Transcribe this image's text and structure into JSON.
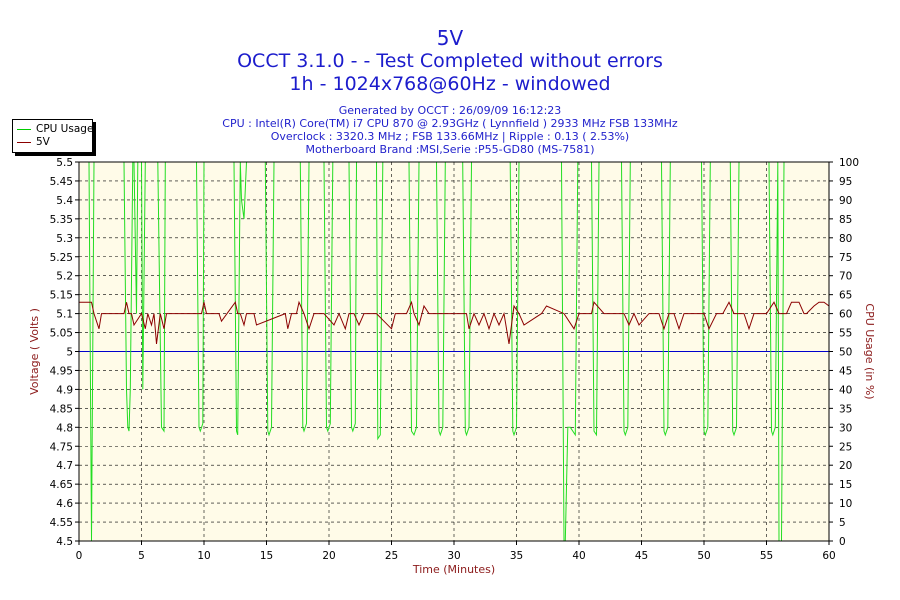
{
  "header": {
    "title": "5V",
    "subtitle1": "OCCT 3.1.0 -  - Test Completed without errors",
    "subtitle2": "1h - 1024x768@60Hz - windowed"
  },
  "info": {
    "generated": "Generated by OCCT : 26/09/09 16:12:23",
    "cpu": "CPU : Intel(R) Core(TM) i7 CPU 870 @ 2.93GHz ( Lynnfield ) 2933 MHz FSB 133MHz",
    "overclock": "Overclock : 3320.3 MHz ; FSB 133.66MHz | Ripple : 0.13 ( 2.53%)",
    "motherboard": "Motherboard Brand :MSI,Serie :P55-GD80 (MS-7581)"
  },
  "legend": {
    "items": [
      {
        "label": "CPU Usage",
        "color": "#00cc00"
      },
      {
        "label": "5V",
        "color": "#8b0000"
      }
    ]
  },
  "colors": {
    "plot_bg": "#fffbe8",
    "grid": "#000000",
    "cpu": "#22dd22",
    "voltage": "#8b0000",
    "reference": "#0000cc"
  },
  "chart_data": {
    "type": "line",
    "xlabel": "Time (Minutes)",
    "ylabel": "Voltage ( Volts )",
    "y2label": "CPU Usage (in %)",
    "xlim": [
      0,
      60
    ],
    "ylim": [
      4.5,
      5.5
    ],
    "y2lim": [
      0,
      100
    ],
    "x_ticks": [
      "0",
      "5",
      "10",
      "15",
      "20",
      "25",
      "30",
      "35",
      "40",
      "45",
      "50",
      "55",
      "60"
    ],
    "y_ticks": [
      "4.5",
      "4.55",
      "4.6",
      "4.65",
      "4.7",
      "4.75",
      "4.8",
      "4.85",
      "4.9",
      "4.95",
      "5",
      "5.05",
      "5.1",
      "5.15",
      "5.2",
      "5.25",
      "5.3",
      "5.35",
      "5.4",
      "5.45",
      "5.5"
    ],
    "y2_ticks": [
      "0",
      "5",
      "10",
      "15",
      "20",
      "25",
      "30",
      "35",
      "40",
      "45",
      "50",
      "55",
      "60",
      "65",
      "70",
      "75",
      "80",
      "85",
      "90",
      "95",
      "100"
    ],
    "grid": true,
    "legend_position": "top-left",
    "reference_line": {
      "y": 5.0
    },
    "series": [
      {
        "name": "CPU Usage",
        "axis": "right",
        "x": [
          0,
          0.8,
          1.0,
          1.2,
          1.4,
          3.6,
          3.8,
          3.9,
          4.0,
          4.1,
          4.3,
          4.4,
          4.6,
          4.7,
          5.0,
          5.1,
          5.3,
          6.3,
          6.6,
          6.8,
          6.9,
          7.1,
          9.4,
          9.6,
          9.7,
          9.9,
          10.0,
          12.4,
          12.6,
          12.7,
          12.9,
          13.0,
          13.2,
          13.4,
          14.9,
          15.1,
          15.2,
          15.4,
          15.6,
          17.7,
          17.9,
          18.0,
          18.2,
          18.4,
          19.6,
          19.8,
          19.9,
          20.1,
          20.3,
          21.6,
          21.8,
          21.9,
          22.1,
          22.2,
          23.8,
          23.9,
          24.1,
          24.3,
          26.4,
          26.6,
          26.8,
          27.0,
          27.2,
          28.6,
          28.8,
          28.9,
          29.1,
          29.3,
          30.7,
          30.9,
          31.0,
          31.2,
          31.4,
          34.5,
          34.7,
          34.8,
          35.0,
          35.2,
          38.6,
          38.8,
          38.9,
          39.1,
          39.3,
          39.5,
          39.7,
          39.9,
          41.0,
          41.2,
          41.4,
          41.6,
          43.4,
          43.6,
          43.7,
          43.9,
          44.1,
          46.6,
          46.8,
          46.9,
          47.1,
          47.3,
          49.8,
          50.0,
          50.1,
          50.3,
          50.5,
          52.1,
          52.3,
          52.4,
          52.6,
          52.8,
          55.2,
          55.4,
          55.5,
          55.7,
          55.9,
          56.0,
          56.2,
          56.4,
          60
        ],
        "y": [
          100,
          100,
          0,
          100,
          100,
          100,
          40,
          30,
          29,
          40,
          100,
          100,
          60,
          100,
          100,
          40,
          100,
          100,
          30,
          29,
          100,
          100,
          100,
          30,
          29,
          31,
          100,
          100,
          29,
          28,
          100,
          90,
          85,
          100,
          100,
          29,
          28,
          30,
          100,
          100,
          30,
          29,
          31,
          100,
          100,
          30,
          29,
          31,
          100,
          100,
          30,
          29,
          31,
          100,
          100,
          27,
          28,
          100,
          100,
          29,
          28,
          30,
          100,
          100,
          29,
          28,
          30,
          100,
          100,
          29,
          28,
          30,
          100,
          100,
          29,
          28,
          30,
          100,
          100,
          0,
          0,
          30,
          30,
          29,
          28,
          100,
          100,
          29,
          28,
          100,
          100,
          29,
          28,
          30,
          100,
          100,
          29,
          28,
          30,
          100,
          100,
          29,
          28,
          30,
          100,
          100,
          29,
          28,
          30,
          100,
          100,
          29,
          28,
          30,
          100,
          0,
          0,
          100,
          100
        ]
      },
      {
        "name": "5V",
        "axis": "left",
        "x": [
          0,
          1.0,
          1.2,
          1.6,
          1.8,
          3.6,
          3.8,
          4.0,
          4.2,
          4.4,
          5.0,
          5.3,
          5.5,
          5.8,
          6.0,
          6.2,
          6.5,
          6.8,
          7.0,
          9.8,
          10.0,
          10.2,
          11.2,
          11.4,
          12.5,
          12.7,
          12.9,
          13.2,
          13.4,
          14.0,
          14.2,
          16.5,
          16.7,
          17.0,
          17.4,
          17.6,
          18.0,
          18.4,
          18.8,
          19.6,
          20.4,
          20.8,
          21.3,
          21.6,
          22.0,
          22.4,
          22.8,
          23.8,
          25.0,
          25.3,
          26.2,
          26.6,
          26.8,
          27.2,
          27.6,
          28.0,
          28.4,
          30.0,
          31.0,
          31.2,
          31.6,
          32.0,
          32.4,
          32.8,
          33.2,
          33.6,
          34.0,
          34.4,
          34.8,
          35.2,
          35.6,
          37.0,
          37.4,
          38.8,
          39.6,
          40.0,
          41.0,
          41.2,
          42.0,
          42.8,
          43.6,
          44.0,
          44.4,
          44.8,
          45.6,
          46.4,
          46.8,
          47.2,
          47.6,
          48.0,
          48.4,
          49.0,
          50.0,
          50.4,
          51.0,
          51.5,
          52.0,
          52.4,
          52.8,
          53.2,
          53.6,
          54.0,
          54.4,
          55.0,
          55.6,
          56.0,
          56.3,
          56.6,
          57.0,
          57.6,
          58.0,
          58.2,
          58.8,
          59.2,
          59.6,
          60
        ],
        "y": [
          5.13,
          5.13,
          5.1,
          5.06,
          5.1,
          5.1,
          5.13,
          5.1,
          5.1,
          5.07,
          5.1,
          5.06,
          5.1,
          5.07,
          5.1,
          5.02,
          5.1,
          5.06,
          5.1,
          5.1,
          5.13,
          5.1,
          5.1,
          5.08,
          5.13,
          5.1,
          5.1,
          5.07,
          5.1,
          5.1,
          5.07,
          5.1,
          5.06,
          5.1,
          5.1,
          5.13,
          5.1,
          5.06,
          5.1,
          5.1,
          5.07,
          5.1,
          5.06,
          5.1,
          5.1,
          5.07,
          5.1,
          5.1,
          5.06,
          5.1,
          5.1,
          5.13,
          5.1,
          5.07,
          5.12,
          5.1,
          5.1,
          5.1,
          5.1,
          5.06,
          5.1,
          5.07,
          5.1,
          5.06,
          5.1,
          5.07,
          5.1,
          5.02,
          5.12,
          5.1,
          5.07,
          5.1,
          5.12,
          5.1,
          5.06,
          5.1,
          5.1,
          5.13,
          5.1,
          5.1,
          5.1,
          5.07,
          5.1,
          5.07,
          5.1,
          5.1,
          5.06,
          5.1,
          5.1,
          5.06,
          5.1,
          5.1,
          5.1,
          5.06,
          5.1,
          5.1,
          5.13,
          5.1,
          5.1,
          5.1,
          5.06,
          5.1,
          5.1,
          5.1,
          5.13,
          5.1,
          5.1,
          5.1,
          5.13,
          5.13,
          5.1,
          5.1,
          5.12,
          5.13,
          5.13,
          5.12
        ]
      }
    ]
  }
}
